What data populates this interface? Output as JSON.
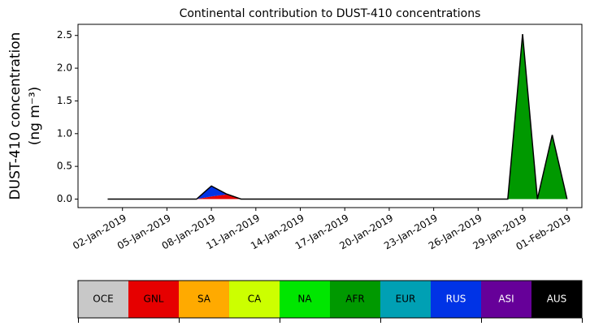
{
  "chart_data": {
    "type": "stacked_area",
    "title": "Continental contribution to DUST-410 concentrations",
    "y_label": [
      "DUST-410 concentration",
      "(ng m⁻³)"
    ],
    "x": [
      "2019-01-01",
      "2019-01-02",
      "2019-01-03",
      "2019-01-04",
      "2019-01-05",
      "2019-01-06",
      "2019-01-07",
      "2019-01-08",
      "2019-01-09",
      "2019-01-10",
      "2019-01-11",
      "2019-01-12",
      "2019-01-13",
      "2019-01-14",
      "2019-01-15",
      "2019-01-16",
      "2019-01-17",
      "2019-01-18",
      "2019-01-19",
      "2019-01-20",
      "2019-01-21",
      "2019-01-22",
      "2019-01-23",
      "2019-01-24",
      "2019-01-25",
      "2019-01-26",
      "2019-01-27",
      "2019-01-28",
      "2019-01-29",
      "2019-01-30",
      "2019-01-31",
      "2019-02-01"
    ],
    "series": [
      {
        "name": "OCE",
        "color": "#c8c8c8",
        "values": [
          0,
          0,
          0,
          0,
          0,
          0,
          0,
          0,
          0,
          0,
          0,
          0,
          0,
          0,
          0,
          0,
          0,
          0,
          0,
          0,
          0,
          0,
          0,
          0,
          0,
          0,
          0,
          0,
          0,
          0,
          0,
          0
        ]
      },
      {
        "name": "GNL",
        "color": "#e60000",
        "values": [
          0,
          0,
          0,
          0,
          0,
          0,
          0,
          0.04,
          0.07,
          0,
          0,
          0,
          0,
          0,
          0,
          0,
          0,
          0,
          0,
          0,
          0,
          0,
          0,
          0,
          0,
          0,
          0,
          0,
          0,
          0,
          0,
          0
        ]
      },
      {
        "name": "SA",
        "color": "#ffaa00",
        "values": [
          0,
          0,
          0,
          0,
          0,
          0,
          0,
          0,
          0,
          0,
          0,
          0,
          0,
          0,
          0,
          0,
          0,
          0,
          0,
          0,
          0,
          0,
          0,
          0,
          0,
          0,
          0,
          0,
          0,
          0,
          0,
          0
        ]
      },
      {
        "name": "CA",
        "color": "#ccff00",
        "values": [
          0,
          0,
          0,
          0,
          0,
          0,
          0,
          0,
          0,
          0,
          0,
          0,
          0,
          0,
          0,
          0,
          0,
          0,
          0,
          0,
          0,
          0,
          0,
          0,
          0,
          0,
          0,
          0,
          0,
          0,
          0,
          0
        ]
      },
      {
        "name": "NA",
        "color": "#00e600",
        "values": [
          0,
          0,
          0,
          0,
          0,
          0,
          0,
          0,
          0,
          0,
          0,
          0,
          0,
          0,
          0,
          0,
          0,
          0,
          0,
          0,
          0,
          0,
          0,
          0,
          0,
          0,
          0,
          0,
          0,
          0,
          0,
          0
        ]
      },
      {
        "name": "AFR",
        "color": "#009900",
        "values": [
          0,
          0,
          0,
          0,
          0,
          0,
          0,
          0,
          0,
          0,
          0,
          0,
          0,
          0,
          0,
          0,
          0,
          0,
          0,
          0,
          0,
          0,
          0,
          0,
          0,
          0,
          0,
          0,
          2.52,
          0,
          0.98,
          0
        ]
      },
      {
        "name": "EUR",
        "color": "#00a0b4",
        "values": [
          0,
          0,
          0,
          0,
          0,
          0,
          0,
          0,
          0,
          0,
          0,
          0,
          0,
          0,
          0,
          0,
          0,
          0,
          0,
          0,
          0,
          0,
          0,
          0,
          0,
          0,
          0,
          0,
          0,
          0,
          0,
          0
        ]
      },
      {
        "name": "RUS",
        "color": "#0033e6",
        "values": [
          0,
          0,
          0,
          0,
          0,
          0,
          0,
          0.16,
          0.01,
          0,
          0,
          0,
          0,
          0,
          0,
          0,
          0,
          0,
          0,
          0,
          0,
          0,
          0,
          0,
          0,
          0,
          0,
          0,
          0,
          0,
          0,
          0
        ]
      },
      {
        "name": "ASI",
        "color": "#660099",
        "values": [
          0,
          0,
          0,
          0,
          0,
          0,
          0,
          0,
          0,
          0,
          0,
          0,
          0,
          0,
          0,
          0,
          0,
          0,
          0,
          0,
          0,
          0,
          0,
          0,
          0,
          0,
          0,
          0,
          0,
          0,
          0,
          0
        ]
      },
      {
        "name": "AUS",
        "color": "#000000",
        "values": [
          0,
          0,
          0,
          0,
          0,
          0,
          0,
          0,
          0,
          0,
          0,
          0,
          0,
          0,
          0,
          0,
          0,
          0,
          0,
          0,
          0,
          0,
          0,
          0,
          0,
          0,
          0,
          0,
          0,
          0,
          0,
          0
        ]
      }
    ],
    "xlim": [
      "2018-12-30",
      "2019-02-02"
    ],
    "xticks": [
      {
        "value": "2019-01-02",
        "label": "02-Jan-2019"
      },
      {
        "value": "2019-01-05",
        "label": "05-Jan-2019"
      },
      {
        "value": "2019-01-08",
        "label": "08-Jan-2019"
      },
      {
        "value": "2019-01-11",
        "label": "11-Jan-2019"
      },
      {
        "value": "2019-01-14",
        "label": "14-Jan-2019"
      },
      {
        "value": "2019-01-17",
        "label": "17-Jan-2019"
      },
      {
        "value": "2019-01-20",
        "label": "20-Jan-2019"
      },
      {
        "value": "2019-01-23",
        "label": "23-Jan-2019"
      },
      {
        "value": "2019-01-26",
        "label": "26-Jan-2019"
      },
      {
        "value": "2019-01-29",
        "label": "29-Jan-2019"
      },
      {
        "value": "2019-02-01",
        "label": "01-Feb-2019"
      }
    ],
    "ylim": [
      -0.13,
      2.67
    ],
    "yticks": [
      {
        "value": 0,
        "label": "0.0"
      },
      0.5,
      {
        "value": 1,
        "label": "1.0"
      },
      1.5,
      {
        "value": 2,
        "label": "2.0"
      },
      2.5
    ],
    "legend": "bottom"
  }
}
